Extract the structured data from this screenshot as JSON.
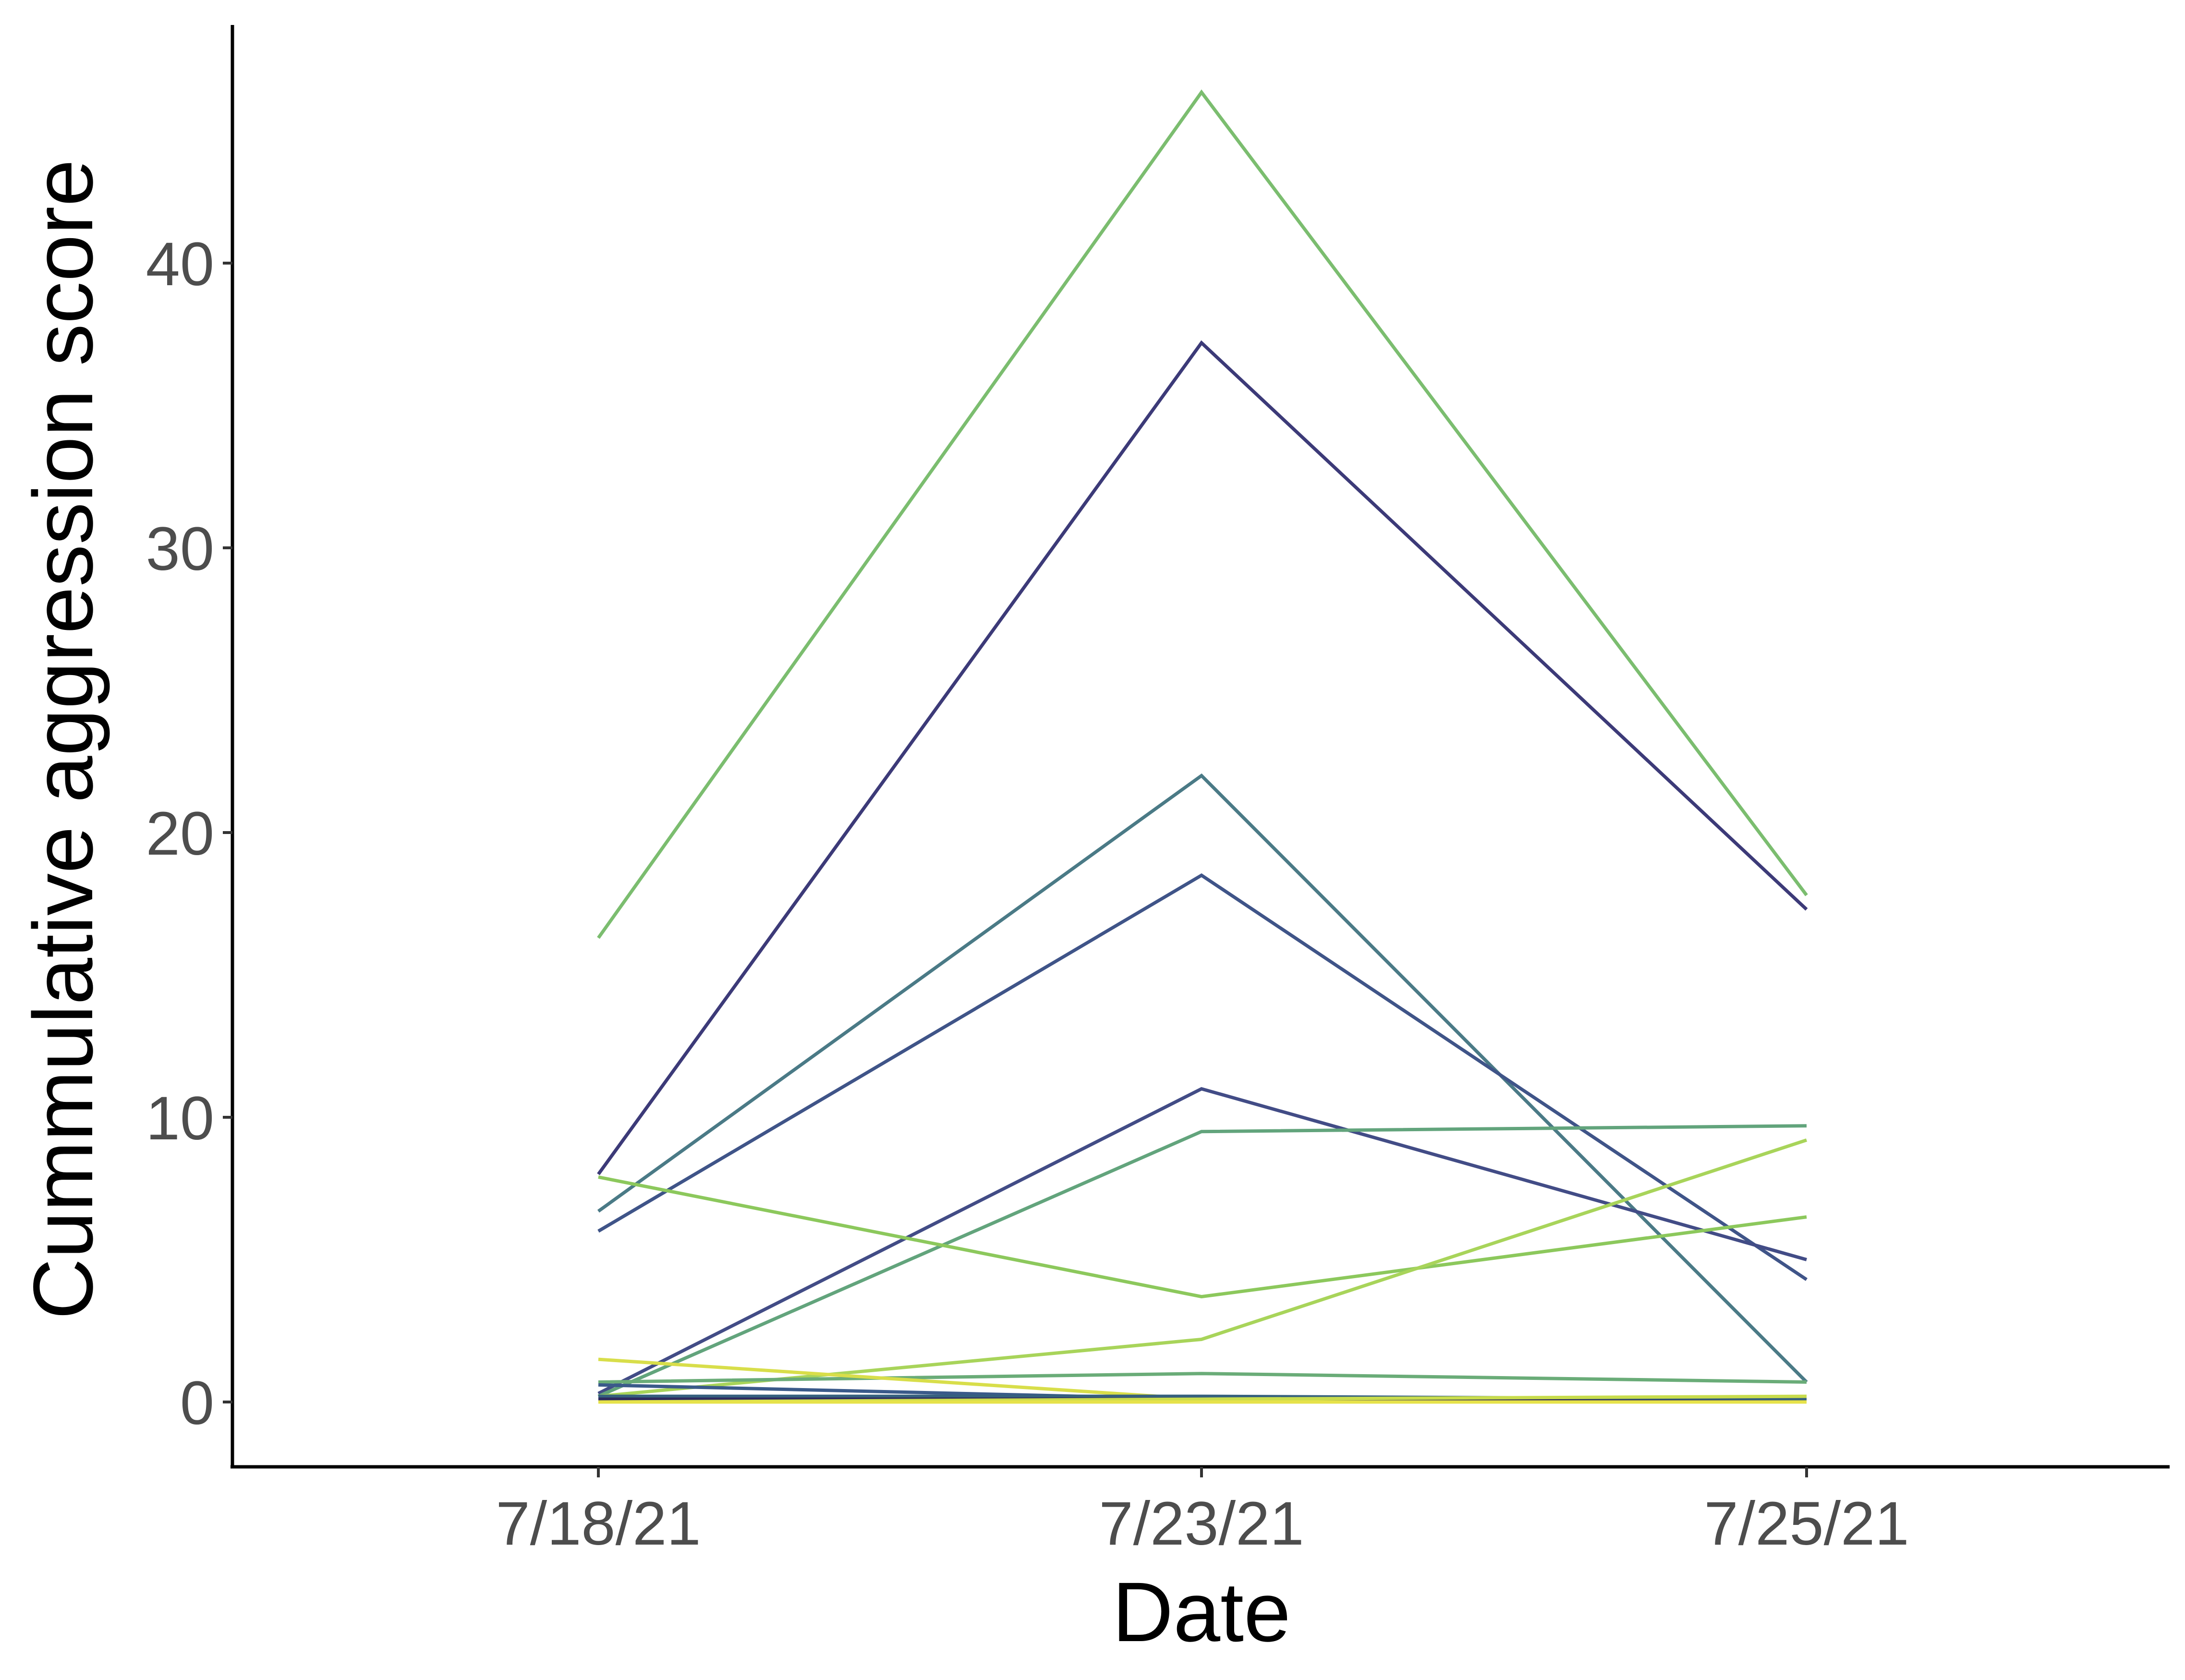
{
  "chart_data": {
    "type": "line",
    "title": "",
    "xlabel": "Date",
    "ylabel": "Cummulative aggression score",
    "categories": [
      "7/18/21",
      "7/23/21",
      "7/25/21"
    ],
    "y_ticks": [
      0,
      10,
      20,
      30,
      40
    ],
    "ylim": [
      -2.3,
      48.3
    ],
    "grid": false,
    "legend": "none",
    "series": [
      {
        "color": "#7bbd6f",
        "values": [
          16.3,
          46.0,
          17.8
        ]
      },
      {
        "color": "#3c3a78",
        "values": [
          8.0,
          37.2,
          17.3
        ]
      },
      {
        "color": "#4a7a86",
        "values": [
          6.7,
          22.0,
          0.7
        ]
      },
      {
        "color": "#3f5488",
        "values": [
          6.0,
          18.5,
          4.3
        ]
      },
      {
        "color": "#424c86",
        "values": [
          0.3,
          11.0,
          5.0
        ]
      },
      {
        "color": "#62a47c",
        "values": [
          0.2,
          9.5,
          9.7
        ]
      },
      {
        "color": "#8cc85c",
        "values": [
          7.9,
          3.7,
          6.5
        ]
      },
      {
        "color": "#a8d45a",
        "values": [
          0.2,
          2.2,
          9.2
        ]
      },
      {
        "color": "#6aac78",
        "values": [
          0.7,
          1.0,
          0.7
        ]
      },
      {
        "color": "#d8de4a",
        "values": [
          1.5,
          0.1,
          0.1
        ]
      },
      {
        "color": "#3a5a8a",
        "values": [
          0.6,
          0.1,
          0.1
        ]
      },
      {
        "color": "#35607e",
        "values": [
          0.2,
          0.2,
          0.1
        ]
      },
      {
        "color": "#2e2a5e",
        "values": [
          0.1,
          0.1,
          0.0
        ]
      },
      {
        "color": "#c8dc4c",
        "values": [
          0.0,
          0.1,
          0.2
        ]
      },
      {
        "color": "#e6e24a",
        "values": [
          0.0,
          0.0,
          0.0
        ]
      }
    ]
  }
}
